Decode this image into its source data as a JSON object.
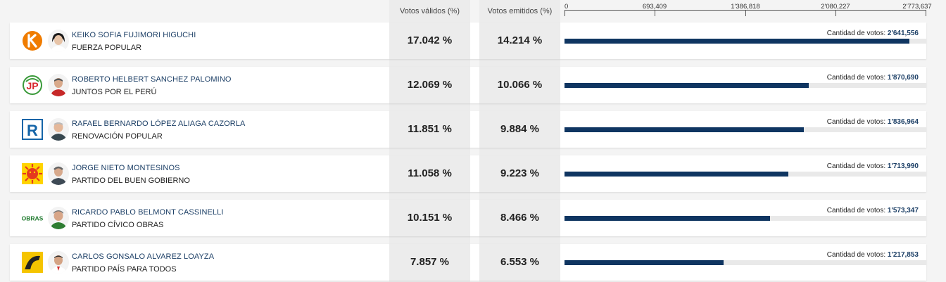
{
  "header": {
    "col_valid": "Votos válidos (%)",
    "col_emitted": "Votos emitidos (%)",
    "axis_ticks": [
      "0",
      "693,409",
      "1'386,818",
      "2'080,227",
      "2'773,637"
    ]
  },
  "votes_label": "Cantidad de votos:",
  "axis_max": 2773637,
  "bar_color": "#0f3561",
  "rows": [
    {
      "candidate": "KEIKO SOFIA FUJIMORI HIGUCHI",
      "party": "FUERZA POPULAR",
      "valid_pct": "17.042 %",
      "emitted_pct": "14.214 %",
      "votes_text": "2'641,556",
      "votes": 2641556,
      "logo": "fuerza-popular-k-logo",
      "logo_color": "#f07c00"
    },
    {
      "candidate": "ROBERTO HELBERT SANCHEZ PALOMINO",
      "party": "JUNTOS POR EL PERÚ",
      "valid_pct": "12.069 %",
      "emitted_pct": "10.066 %",
      "votes_text": "1'870,690",
      "votes": 1870690,
      "logo": "juntos-por-el-peru-jp-logo",
      "logo_color": "#d8262e"
    },
    {
      "candidate": "RAFAEL BERNARDO LÓPEZ ALIAGA CAZORLA",
      "party": "RENOVACIÓN POPULAR",
      "valid_pct": "11.851 %",
      "emitted_pct": "9.884 %",
      "votes_text": "1'836,964",
      "votes": 1836964,
      "logo": "renovacion-popular-r-logo",
      "logo_color": "#1565a8"
    },
    {
      "candidate": "JORGE NIETO MONTESINOS",
      "party": "PARTIDO DEL BUEN GOBIERNO",
      "valid_pct": "11.058 %",
      "emitted_pct": "9.223 %",
      "votes_text": "1'713,990",
      "votes": 1713990,
      "logo": "buen-gobierno-sun-logo",
      "logo_color": "#e53a1e"
    },
    {
      "candidate": "RICARDO PABLO BELMONT CASSINELLI",
      "party": "PARTIDO CÍVICO OBRAS",
      "valid_pct": "10.151 %",
      "emitted_pct": "8.466 %",
      "votes_text": "1'573,347",
      "votes": 1573347,
      "logo": "obras-logo",
      "logo_color": "#1f7a2e",
      "logo_text": "OBRAS"
    },
    {
      "candidate": "CARLOS GONSALO ALVAREZ LOAYZA",
      "party": "PARTIDO PAÍS PARA TODOS",
      "valid_pct": "7.857 %",
      "emitted_pct": "6.553 %",
      "votes_text": "1'217,853",
      "votes": 1217853,
      "logo": "pais-para-todos-logo",
      "logo_color": "#f5c400"
    }
  ]
}
